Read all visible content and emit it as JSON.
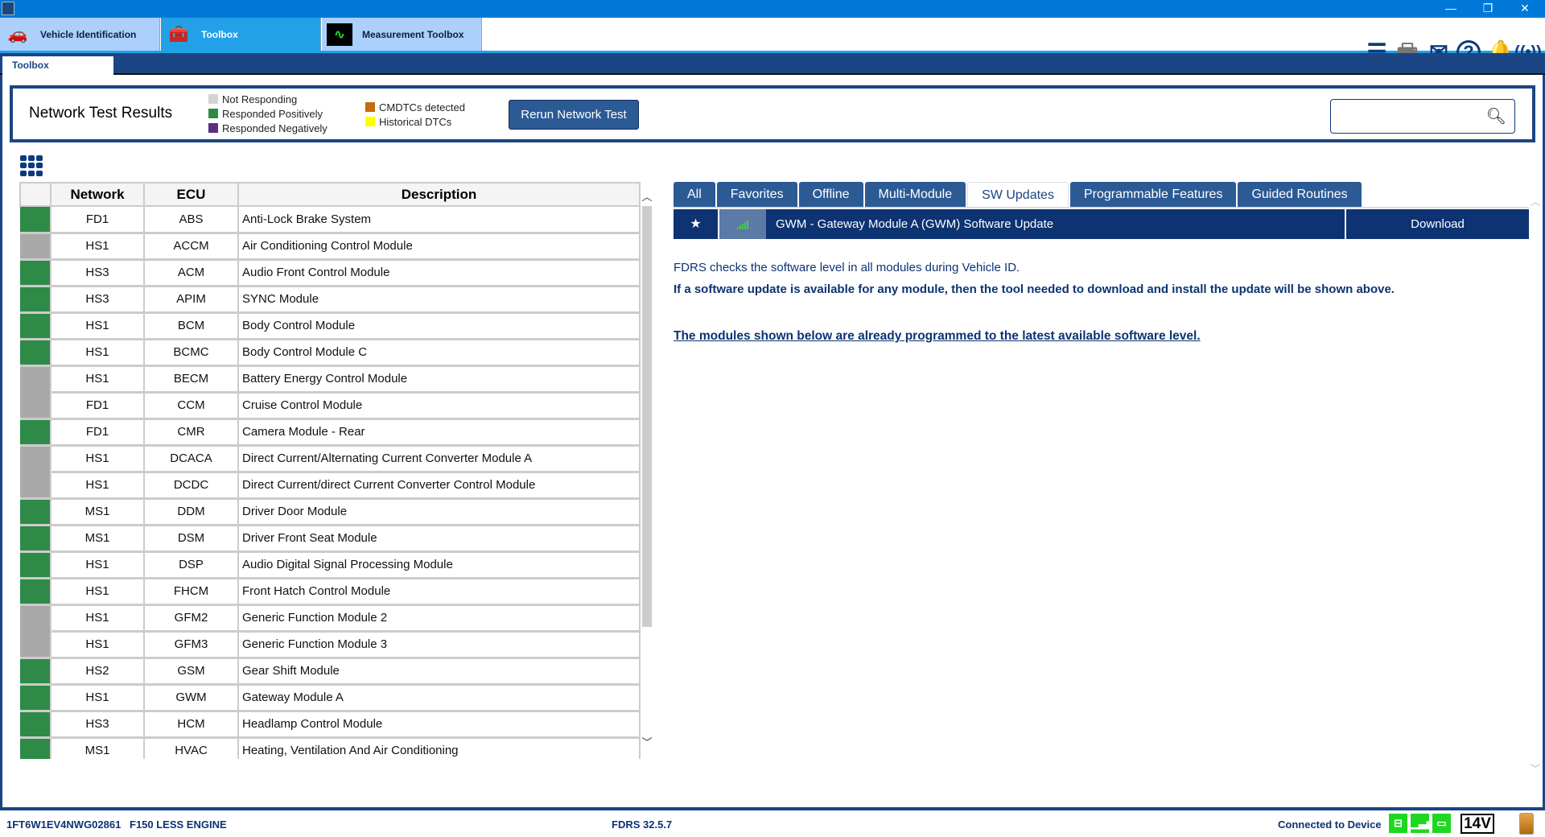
{
  "window": {
    "minimize": "—",
    "restore": "❐",
    "close": "✕"
  },
  "app_tabs": [
    {
      "label": "Vehicle Identification",
      "icon": "car-icon"
    },
    {
      "label": "Toolbox",
      "icon": "toolbox-icon",
      "active": true
    },
    {
      "label": "Measurement Toolbox",
      "icon": "oscilloscope-icon"
    }
  ],
  "top_icons": [
    "menu-icon",
    "printer-icon",
    "mail-icon",
    "help-icon",
    "bell-icon",
    "broadcast-icon"
  ],
  "subtab": "Toolbox",
  "results": {
    "title": "Network Test Results",
    "legend": [
      {
        "label": "Not Responding",
        "color": "#d3d3d3"
      },
      {
        "label": "Responded Positively",
        "color": "#2e8b47"
      },
      {
        "label": "Responded Negatively",
        "color": "#5b2e82"
      },
      {
        "label": "CMDTCs detected",
        "color": "#c56a10"
      },
      {
        "label": "Historical DTCs",
        "color": "#ffff00"
      }
    ],
    "rerun_label": "Rerun Network Test",
    "search_value": ""
  },
  "status_colors": {
    "positive": "#2e8b47",
    "not_responding": "#a9a9a9"
  },
  "table": {
    "headers": [
      "",
      "Network",
      "ECU",
      "Description"
    ],
    "rows": [
      {
        "status": "positive",
        "network": "FD1",
        "ecu": "ABS",
        "description": "Anti-Lock Brake System"
      },
      {
        "status": "not_responding",
        "network": "HS1",
        "ecu": "ACCM",
        "description": "Air Conditioning Control Module"
      },
      {
        "status": "positive",
        "network": "HS3",
        "ecu": "ACM",
        "description": "Audio Front Control Module"
      },
      {
        "status": "positive",
        "network": "HS3",
        "ecu": "APIM",
        "description": "SYNC Module"
      },
      {
        "status": "positive",
        "network": "HS1",
        "ecu": "BCM",
        "description": "Body Control Module"
      },
      {
        "status": "positive",
        "network": "HS1",
        "ecu": "BCMC",
        "description": "Body Control Module C"
      },
      {
        "status": "not_responding",
        "network": "HS1",
        "ecu": "BECM",
        "description": "Battery Energy Control Module"
      },
      {
        "status": "not_responding",
        "network": "FD1",
        "ecu": "CCM",
        "description": "Cruise Control Module"
      },
      {
        "status": "positive",
        "network": "FD1",
        "ecu": "CMR",
        "description": "Camera Module - Rear"
      },
      {
        "status": "not_responding",
        "network": "HS1",
        "ecu": "DCACA",
        "description": "Direct Current/Alternating Current Converter Module A"
      },
      {
        "status": "not_responding",
        "network": "HS1",
        "ecu": "DCDC",
        "description": "Direct Current/direct Current Converter Control Module"
      },
      {
        "status": "positive",
        "network": "MS1",
        "ecu": "DDM",
        "description": "Driver Door Module"
      },
      {
        "status": "positive",
        "network": "MS1",
        "ecu": "DSM",
        "description": "Driver Front Seat Module"
      },
      {
        "status": "positive",
        "network": "HS1",
        "ecu": "DSP",
        "description": "Audio Digital Signal Processing Module"
      },
      {
        "status": "positive",
        "network": "HS1",
        "ecu": "FHCM",
        "description": "Front Hatch Control Module"
      },
      {
        "status": "not_responding",
        "network": "HS1",
        "ecu": "GFM2",
        "description": "Generic Function Module 2"
      },
      {
        "status": "not_responding",
        "network": "HS1",
        "ecu": "GFM3",
        "description": "Generic Function Module 3"
      },
      {
        "status": "positive",
        "network": "HS2",
        "ecu": "GSM",
        "description": "Gear Shift Module"
      },
      {
        "status": "positive",
        "network": "HS1",
        "ecu": "GWM",
        "description": "Gateway Module A"
      },
      {
        "status": "positive",
        "network": "HS3",
        "ecu": "HCM",
        "description": "Headlamp Control Module"
      },
      {
        "status": "positive",
        "network": "MS1",
        "ecu": "HVAC",
        "description": "Heating, Ventilation And Air Conditioning"
      }
    ]
  },
  "right_tabs": [
    {
      "label": "All"
    },
    {
      "label": "Favorites"
    },
    {
      "label": "Offline"
    },
    {
      "label": "Multi-Module"
    },
    {
      "label": "SW Updates",
      "active": true
    },
    {
      "label": "Programmable Features"
    },
    {
      "label": "Guided Routines"
    }
  ],
  "update": {
    "title": "GWM - Gateway Module A (GWM) Software Update",
    "action": "Download"
  },
  "info": {
    "line1": "FDRS checks the software level in all modules during Vehicle ID.",
    "line2": "If a software update is available for any module, then the tool needed to download and install the update will be shown above.",
    "line3": "The modules shown below are already programmed to the latest available software level."
  },
  "statusbar": {
    "vin": "1FT6W1EV4NWG02861",
    "vehicle": "F150 LESS ENGINE",
    "version": "FDRS 32.5.7",
    "connection": "Connected to Device",
    "voltage": "14V"
  }
}
